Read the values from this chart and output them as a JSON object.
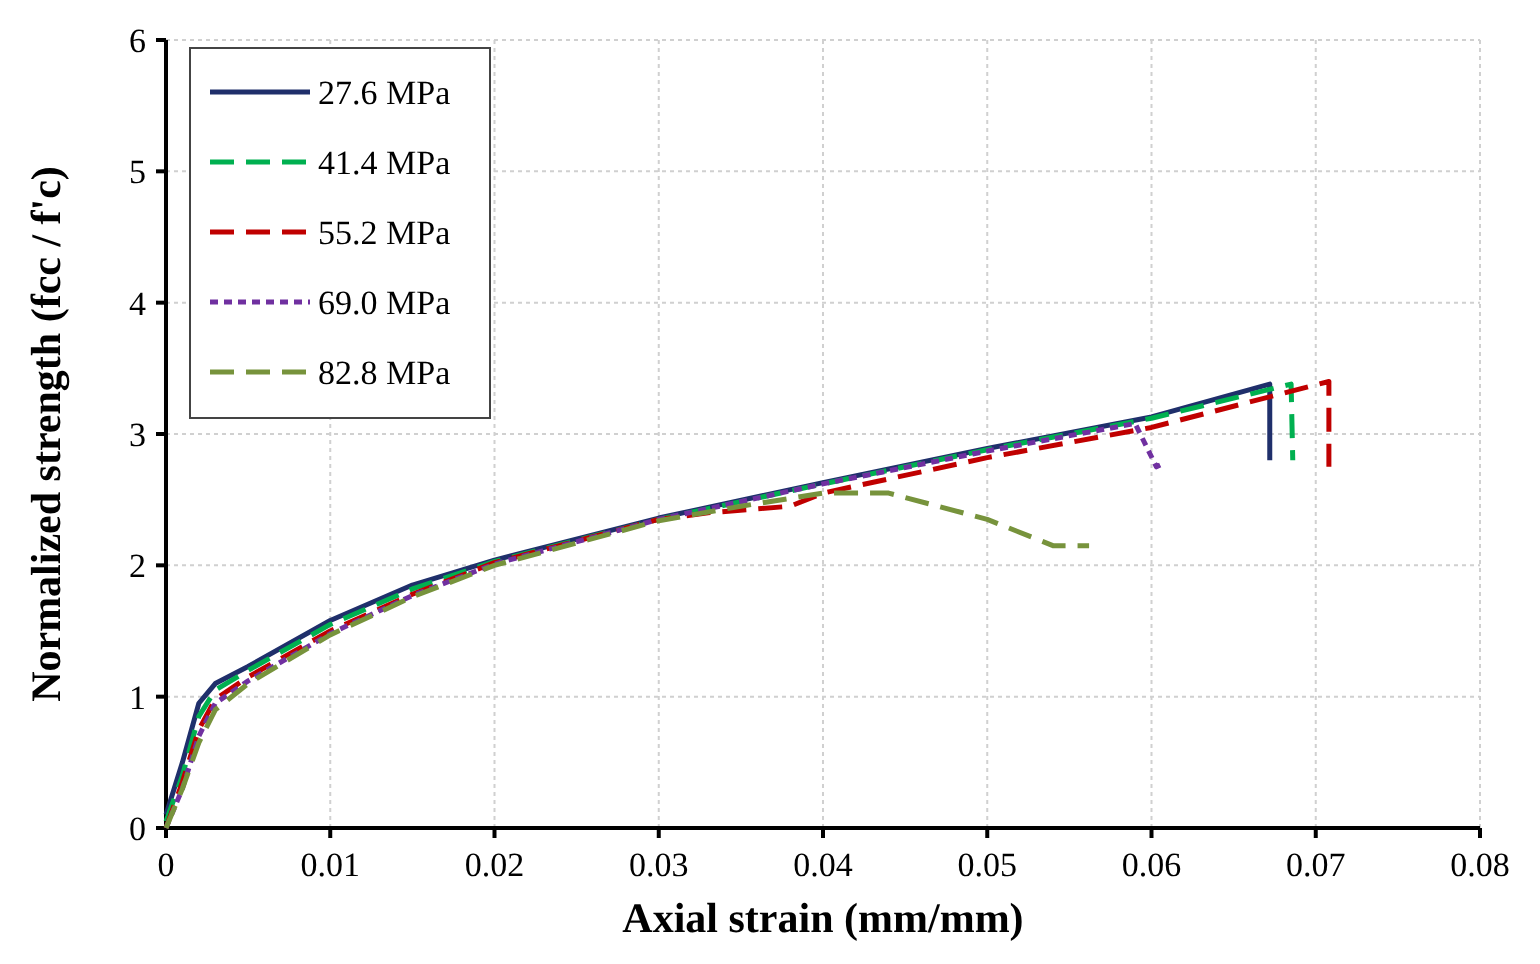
{
  "chart_data": {
    "type": "line",
    "xlabel": "Axial strain (mm/mm)",
    "ylabel": "Normalized strength (fcc / f'c)",
    "xlim": [
      0,
      0.08
    ],
    "ylim": [
      0,
      6
    ],
    "xticks": [
      0,
      0.01,
      0.02,
      0.03,
      0.04,
      0.05,
      0.06,
      0.07,
      0.08
    ],
    "yticks": [
      0,
      1,
      2,
      3,
      4,
      5,
      6
    ],
    "grid": true,
    "legend": "top left",
    "series": [
      {
        "name": "27.6 MPa",
        "color": "#1f2f6b",
        "line_style": "solid",
        "x": [
          0,
          0.001,
          0.002,
          0.003,
          0.005,
          0.01,
          0.015,
          0.02,
          0.03,
          0.04,
          0.05,
          0.06,
          0.0672,
          0.0672
        ],
        "values": [
          0.1,
          0.5,
          0.95,
          1.1,
          1.23,
          1.58,
          1.85,
          2.04,
          2.36,
          2.63,
          2.89,
          3.13,
          3.38,
          2.8
        ]
      },
      {
        "name": "41.4 MPa",
        "color": "#00b050",
        "line_style": "dashed",
        "x": [
          0,
          0.001,
          0.002,
          0.003,
          0.005,
          0.01,
          0.015,
          0.02,
          0.03,
          0.04,
          0.05,
          0.06,
          0.0685,
          0.0686
        ],
        "values": [
          0.05,
          0.4,
          0.85,
          1.05,
          1.2,
          1.55,
          1.82,
          2.03,
          2.35,
          2.62,
          2.88,
          3.12,
          3.38,
          2.8
        ]
      },
      {
        "name": "55.2 MPa",
        "color": "#c00000",
        "line_style": "dashed",
        "x": [
          0,
          0.001,
          0.002,
          0.003,
          0.005,
          0.01,
          0.015,
          0.02,
          0.03,
          0.033,
          0.038,
          0.04,
          0.05,
          0.06,
          0.0708,
          0.0708
        ],
        "values": [
          0,
          0.35,
          0.75,
          0.98,
          1.15,
          1.5,
          1.78,
          2.02,
          2.35,
          2.4,
          2.45,
          2.55,
          2.82,
          3.05,
          3.4,
          2.75
        ]
      },
      {
        "name": "69.0 MPa",
        "color": "#7030a0",
        "line_style": "dotted",
        "x": [
          0,
          0.001,
          0.002,
          0.003,
          0.005,
          0.01,
          0.015,
          0.02,
          0.03,
          0.04,
          0.05,
          0.059,
          0.0603,
          0.0608
        ],
        "values": [
          0,
          0.3,
          0.7,
          0.95,
          1.12,
          1.48,
          1.77,
          2.01,
          2.35,
          2.62,
          2.87,
          3.08,
          2.75,
          2.78
        ]
      },
      {
        "name": "82.8 MPa",
        "color": "#77933c",
        "line_style": "dashed",
        "x": [
          0,
          0.001,
          0.002,
          0.003,
          0.005,
          0.01,
          0.015,
          0.02,
          0.03,
          0.035,
          0.04,
          0.044,
          0.05,
          0.054,
          0.0562
        ],
        "values": [
          0,
          0.3,
          0.65,
          0.9,
          1.1,
          1.47,
          1.76,
          2.0,
          2.34,
          2.45,
          2.55,
          2.55,
          2.35,
          2.15,
          2.15
        ]
      }
    ]
  }
}
